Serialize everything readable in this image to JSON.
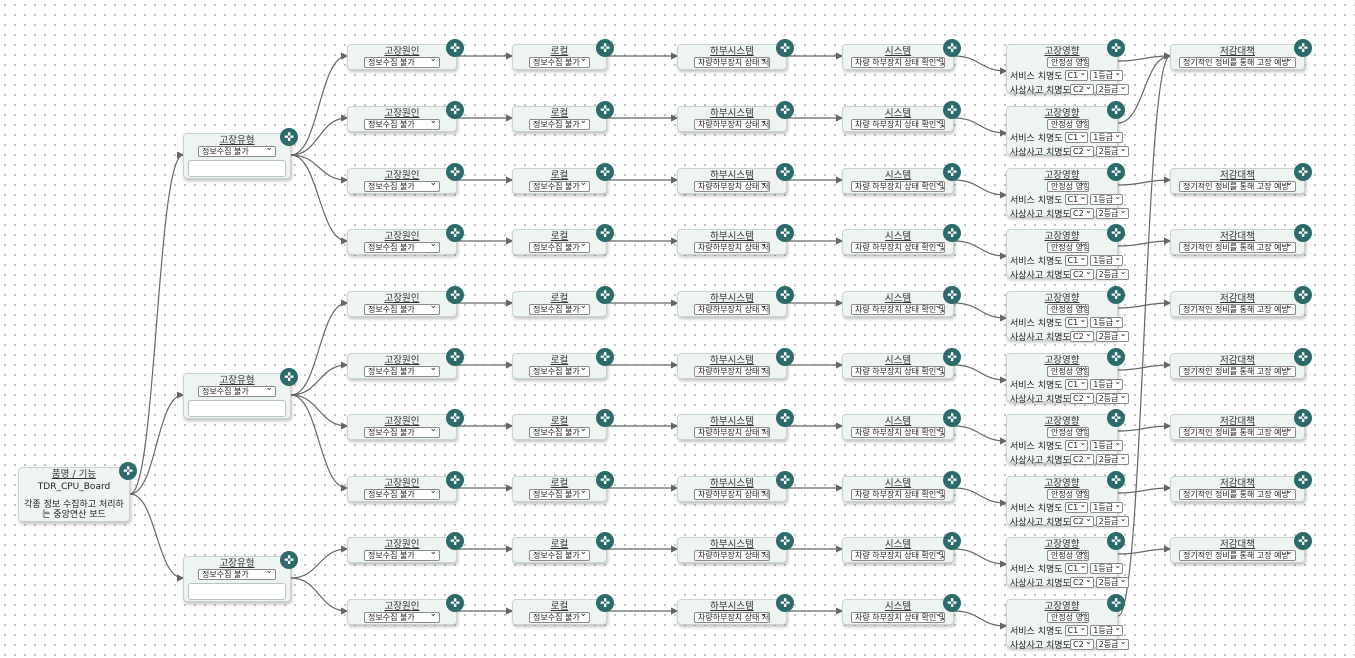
{
  "colors": {
    "accent": "#2c6b6b",
    "node_bg": "#eef5f1",
    "edge": "#666666"
  },
  "labels": {
    "root_title": "품명 / 기능",
    "failure_type": "고장유형",
    "failure_cause": "고장원인",
    "local": "로컬",
    "subsystem": "하부시스템",
    "system": "시스템",
    "failure_effect": "고장영향",
    "mitigation": "저감대책",
    "service_severity": "서비스 치명도",
    "safety_severity": "사상사고 치명도"
  },
  "icons": {
    "move": "move-arrows-icon",
    "dropdown": "chevron-down-icon"
  },
  "root": {
    "name": "TDR_CPU_Board",
    "description": "각종 정보 수집하고 처리하는 중앙연산 보드"
  },
  "failure_types": [
    {
      "mode": "정보수집 불가"
    },
    {
      "mode": "정보수집 불가"
    },
    {
      "mode": "정보수집 불가"
    }
  ],
  "chains": [
    {
      "cause": "정보수집 불가",
      "local": "정보수집 불가",
      "subsystem": "차량하부장치 상태 저장 불가",
      "system": "차량 하부장치 상태 확인 및",
      "effect": "안정성 영향",
      "service_grade": "C1",
      "service_level": "1등급",
      "safety_grade": "C2",
      "safety_level": "2등급",
      "mitigation": "정기적인 정비를 통해 고장 예방"
    },
    {
      "cause": "정보수집 불가",
      "local": "정보수집 불가",
      "subsystem": "차량하부장치 상태 저장 불가",
      "system": "차량 하부장치 상태 확인 및",
      "effect": "안정성 영향",
      "service_grade": "C1",
      "service_level": "1등급",
      "safety_grade": "C2",
      "safety_level": "2등급",
      "mitigation": ""
    },
    {
      "cause": "정보수집 불가",
      "local": "정보수집 불가",
      "subsystem": "차량하부장치 상태 저장 불가",
      "system": "차량 하부장치 상태 확인 및",
      "effect": "안정성 영향",
      "service_grade": "C1",
      "service_level": "1등급",
      "safety_grade": "C2",
      "safety_level": "2등급",
      "mitigation": "정기적인 정비를 통해 고장 예방"
    },
    {
      "cause": "정보수집 불가",
      "local": "정보수집 불가",
      "subsystem": "차량하부장치 상태 저장 불가",
      "system": "차량 하부장치 상태 확인 및",
      "effect": "안정성 영향",
      "service_grade": "C1",
      "service_level": "1등급",
      "safety_grade": "C2",
      "safety_level": "2등급",
      "mitigation": "정기적인 정비를 통해 고장 예방"
    },
    {
      "cause": "정보수집 불가",
      "local": "정보수집 불가",
      "subsystem": "차량하부장치 상태 저장 불가",
      "system": "차량 하부장치 상태 확인 및",
      "effect": "안정성 영향",
      "service_grade": "C1",
      "service_level": "1등급",
      "safety_grade": "C2",
      "safety_level": "2등급",
      "mitigation": "정기적인 정비를 통해 고장 예방"
    },
    {
      "cause": "정보수집 불가",
      "local": "정보수집 불가",
      "subsystem": "차량하부장치 상태 저장 불가",
      "system": "차량 하부장치 상태 확인 및",
      "effect": "안정성 영향",
      "service_grade": "C1",
      "service_level": "1등급",
      "safety_grade": "C2",
      "safety_level": "2등급",
      "mitigation": "정기적인 정비를 통해 고장 예방"
    },
    {
      "cause": "정보수집 불가",
      "local": "정보수집 불가",
      "subsystem": "차량하부장치 상태 저장 불가",
      "system": "차량 하부장치 상태 확인 및",
      "effect": "안정성 영향",
      "service_grade": "C1",
      "service_level": "1등급",
      "safety_grade": "C2",
      "safety_level": "2등급",
      "mitigation": "정기적인 정비를 통해 고장 예방"
    },
    {
      "cause": "정보수집 불가",
      "local": "정보수집 불가",
      "subsystem": "차량하부장치 상태 저장 불가",
      "system": "차량 하부장치 상태 확인 및",
      "effect": "안정성 영향",
      "service_grade": "C1",
      "service_level": "1등급",
      "safety_grade": "C2",
      "safety_level": "2등급",
      "mitigation": "정기적인 정비를 통해 고장 예방"
    },
    {
      "cause": "정보수집 불가",
      "local": "정보수집 불가",
      "subsystem": "차량하부장치 상태 저장 불가",
      "system": "차량 하부장치 상태 확인 및",
      "effect": "안정성 영향",
      "service_grade": "C1",
      "service_level": "1등급",
      "safety_grade": "C2",
      "safety_level": "2등급",
      "mitigation": "정기적인 정비를 통해 고장 예방"
    },
    {
      "cause": "정보수집 불가",
      "local": "정보수집 불가",
      "subsystem": "차량하부장치 상태 저장 불가",
      "system": "차량 하부장치 상태 확인 및",
      "effect": "안정성 영향",
      "service_grade": "C1",
      "service_level": "1등급",
      "safety_grade": "C2",
      "safety_level": "2등급",
      "mitigation": ""
    }
  ]
}
